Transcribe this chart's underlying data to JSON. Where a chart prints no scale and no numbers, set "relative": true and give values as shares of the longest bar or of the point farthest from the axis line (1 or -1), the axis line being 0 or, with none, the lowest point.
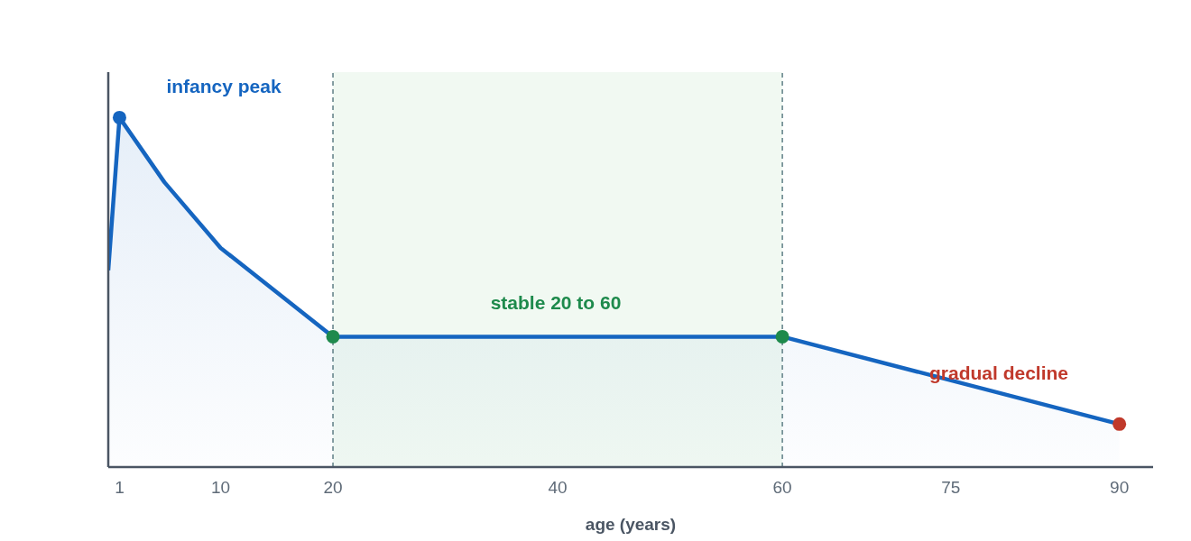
{
  "chart_data": {
    "type": "area",
    "relative": true,
    "xlabel": "age (years)",
    "x": [
      0,
      1,
      5,
      10,
      20,
      60,
      90
    ],
    "xlim": [
      0,
      93
    ],
    "xticks": [
      1,
      10,
      20,
      40,
      60,
      75,
      90
    ],
    "series": [
      {
        "color": "#1565c0",
        "values": [
          0.563,
          1,
          0.815,
          0.627,
          0.373,
          0.373,
          0.123
        ],
        "marker": "none"
      },
      {
        "type": "scatter",
        "x": [
          1,
          20,
          60,
          90
        ],
        "values": [
          1,
          0.373,
          0.373,
          0.123
        ],
        "colors": [
          "#1565c0",
          "#1e8a4c",
          "#1e8a4c",
          "#c0392b"
        ],
        "marker": "circle"
      }
    ],
    "bands": [
      {
        "axis": "x",
        "from": 20,
        "to": 60,
        "color": "#e8f5e9"
      }
    ],
    "ref_lines": [
      {
        "axis": "x",
        "value": 20,
        "color": "#5f7f86",
        "line_style": "dashed"
      },
      {
        "axis": "x",
        "value": 60,
        "color": "#5f7f86",
        "line_style": "dashed"
      }
    ],
    "annotations": [
      "infancy peak",
      "stable 20 to 60",
      "gradual decline"
    ],
    "grid": false,
    "legend": false
  }
}
